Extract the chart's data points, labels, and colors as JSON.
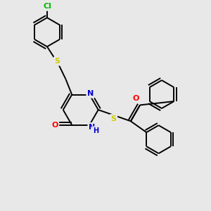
{
  "bg_color": "#e8e8e8",
  "bond_color": "#000000",
  "atom_colors": {
    "N": "#0000cc",
    "O": "#ff0000",
    "S": "#cccc00",
    "Cl": "#00bb00",
    "C": "#000000"
  },
  "line_width": 1.4,
  "dbl_sep": 0.12
}
